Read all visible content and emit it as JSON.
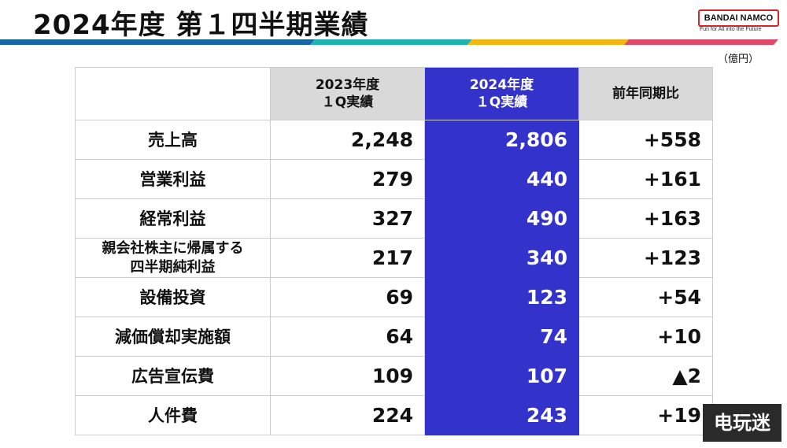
{
  "title": "2024年度 第１四半期業績",
  "logo": {
    "text": "BANDAI NAMCO",
    "tagline": "Fun for All into the Future"
  },
  "unit": "（億円）",
  "colors": {
    "blue": "#1565a8",
    "teal": "#1fb3b3",
    "yellow": "#f3b715",
    "pink": "#e04a66",
    "highlight": "#3333cc"
  },
  "table": {
    "headers": [
      "",
      "2023年度\n１Q実績",
      "2024年度\n１Q実績",
      "前年同期比"
    ],
    "rows": [
      {
        "label": "売上高",
        "y2023": "2,248",
        "y2024": "2,806",
        "diff": "+558"
      },
      {
        "label": "営業利益",
        "y2023": "279",
        "y2024": "440",
        "diff": "+161"
      },
      {
        "label": "経常利益",
        "y2023": "327",
        "y2024": "490",
        "diff": "+163"
      },
      {
        "label": "親会社株主に帰属する\n四半期純利益",
        "y2023": "217",
        "y2024": "340",
        "diff": "+123"
      },
      {
        "label": "設備投資",
        "y2023": "69",
        "y2024": "123",
        "diff": "+54"
      },
      {
        "label": "減価償却実施額",
        "y2023": "64",
        "y2024": "74",
        "diff": "+10"
      },
      {
        "label": "広告宣伝費",
        "y2023": "109",
        "y2024": "107",
        "diff": "▲2"
      },
      {
        "label": "人件費",
        "y2023": "224",
        "y2024": "243",
        "diff": "+19"
      }
    ]
  },
  "watermark": "电玩迷"
}
